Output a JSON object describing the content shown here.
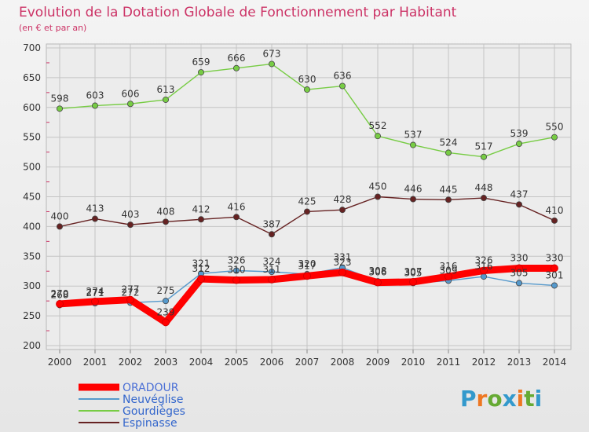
{
  "chart_data": {
    "type": "line",
    "title": "Evolution de la Dotation Globale de Fonctionnement par Habitant",
    "subtitle": "(en € et par an)",
    "xlabel": "",
    "ylabel": "",
    "x": [
      "2000",
      "2001",
      "2002",
      "2003",
      "2004",
      "2005",
      "2006",
      "2007",
      "2008",
      "2009",
      "2010",
      "2011",
      "2012",
      "2013",
      "2014"
    ],
    "ylim": [
      200,
      700
    ],
    "yticks": [
      "200",
      "250",
      "300",
      "350",
      "400",
      "450",
      "500",
      "550",
      "600",
      "650",
      "700"
    ],
    "grid": true,
    "legend_position": "bottom-left",
    "series": [
      {
        "name": "ORADOUR",
        "color": "#ff0000",
        "values": [
          270,
          274,
          277,
          239,
          312,
          310,
          311,
          317,
          323,
          306,
          307,
          316,
          326,
          330,
          330
        ]
      },
      {
        "name": "Neuvéglise",
        "color": "#5599cc",
        "values": [
          268,
          271,
          272,
          275,
          321,
          326,
          324,
          320,
          331,
          308,
          305,
          309,
          316,
          305,
          301
        ]
      },
      {
        "name": "Gourdièges",
        "color": "#77cc44",
        "values": [
          598,
          603,
          606,
          613,
          659,
          666,
          673,
          630,
          636,
          552,
          537,
          524,
          517,
          539,
          550
        ]
      },
      {
        "name": "Espinasse",
        "color": "#662222",
        "values": [
          400,
          413,
          403,
          408,
          412,
          416,
          387,
          425,
          428,
          450,
          446,
          445,
          448,
          437,
          410
        ]
      }
    ]
  },
  "branding": {
    "logo_text": "Proxiti",
    "logo_letters": [
      "P",
      "r",
      "o",
      "x",
      "i",
      "t",
      "i"
    ],
    "logo_colors": [
      "#3399cc",
      "#ee7722",
      "#66aa33",
      "#3399cc",
      "#ee7722",
      "#66aa33",
      "#3399cc"
    ]
  }
}
